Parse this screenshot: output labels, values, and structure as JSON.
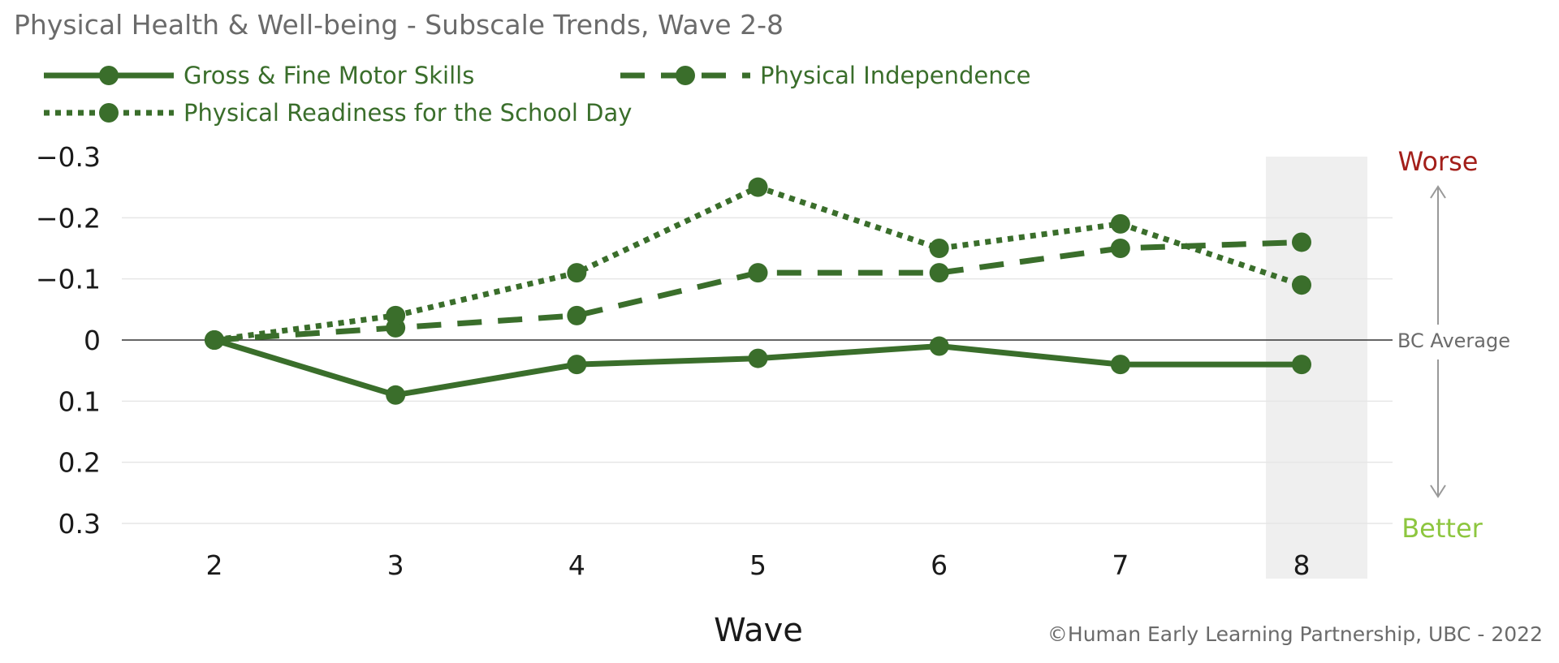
{
  "chart_data": {
    "type": "line",
    "title": "Physical Health & Well-being - Subscale Trends, Wave 2-8",
    "xlabel": "Wave",
    "ylabel": "",
    "x": [
      2,
      3,
      4,
      5,
      6,
      7,
      8
    ],
    "y_ticks": [
      -0.3,
      -0.2,
      -0.1,
      0,
      0.1,
      0.2,
      0.3
    ],
    "y_tick_labels": [
      "−0.3",
      "−0.2",
      "−0.1",
      "0",
      "0.1",
      "0.2",
      "0.3"
    ],
    "ylim": [
      -0.3,
      0.3
    ],
    "y_inverted": true,
    "grid": true,
    "legend_position": "top-left",
    "highlight_wave": 8,
    "reference_line": {
      "value": 0,
      "label": "BC Average"
    },
    "annotations": {
      "worse": "Worse",
      "better": "Better"
    },
    "series": [
      {
        "name": "Gross & Fine Motor Skills",
        "style": "solid",
        "values": [
          0,
          0.09,
          0.04,
          0.03,
          0.01,
          0.04,
          0.04
        ]
      },
      {
        "name": "Physical Independence",
        "style": "dashed",
        "values": [
          0,
          -0.02,
          -0.04,
          -0.11,
          -0.11,
          -0.15,
          -0.16
        ]
      },
      {
        "name": "Physical Readiness for the School Day",
        "style": "dotted",
        "values": [
          0,
          -0.04,
          -0.11,
          -0.25,
          -0.15,
          -0.19,
          -0.09
        ]
      }
    ],
    "colors": {
      "series": "#3a6e2b",
      "worse": "#a31f1a",
      "better": "#8dc63f",
      "highlight": "#efefef",
      "grid": "#e6e6e6"
    }
  },
  "footer": {
    "copyright": "©Human Early Learning Partnership, UBC - 2022"
  }
}
